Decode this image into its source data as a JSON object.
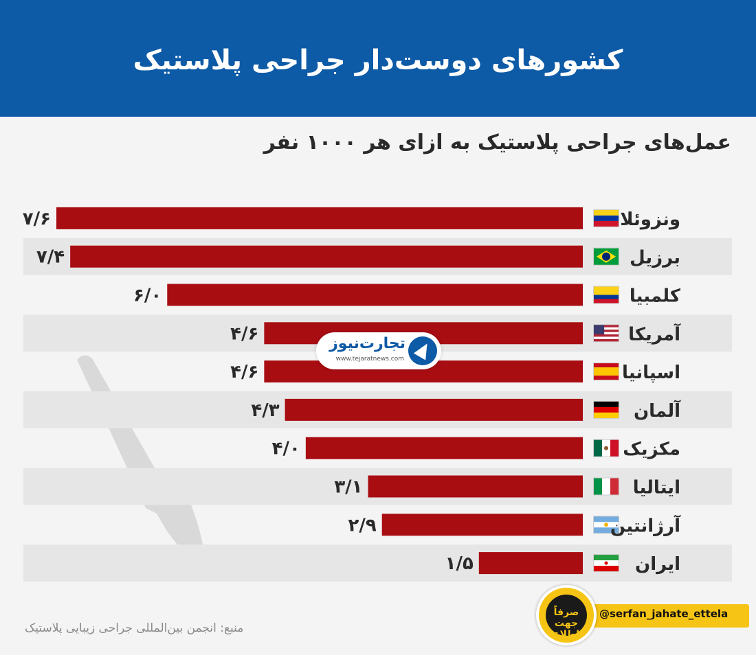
{
  "header": {
    "title": "کشورهای دوست‌دار جراحی پلاستیک",
    "background": "#0d5aa6"
  },
  "chart_data": {
    "type": "bar",
    "orientation": "horizontal",
    "title": "کشورهای دوست‌دار جراحی پلاستیک",
    "subtitle": "عمل‌های جراحی پلاستیک به ازای هر ۱۰۰۰ نفر",
    "categories": [
      "ونزوئلا",
      "برزیل",
      "کلمبیا",
      "آمریکا",
      "اسپانیا",
      "آلمان",
      "مکزیک",
      "ایتالیا",
      "آرژانتین",
      "ایران"
    ],
    "values": [
      7.6,
      7.4,
      6.0,
      4.6,
      4.6,
      4.3,
      4.0,
      3.1,
      2.9,
      1.5
    ],
    "value_labels": [
      "۷/۶",
      "۷/۴",
      "۶/۰",
      "۴/۶",
      "۴/۶",
      "۴/۳",
      "۴/۰",
      "۳/۱",
      "۲/۹",
      "۱/۵"
    ],
    "flags": [
      "venezuela",
      "brazil",
      "colombia",
      "usa",
      "spain",
      "germany",
      "mexico",
      "italy",
      "argentina",
      "iran"
    ],
    "xlim": [
      0,
      7.6
    ],
    "bar_color": "#a80d12",
    "stripe_color": "#e6e6e6",
    "grid": false,
    "legend": "none"
  },
  "source": "منبع: انجمن بین‌المللی جراحی زیبایی پلاستیک",
  "watermark": {
    "name": "تجارت‌نیوز",
    "url": "www.tejaratnews.com",
    "logo_icon": "tejarat-news-logo-icon"
  },
  "instagram": {
    "handle": "@serfan_jahate_ettela",
    "logo_text": "صرفاً جهت اطلاع",
    "color": "#f6c414"
  },
  "decoration": {
    "icon": "scalpel-icon"
  }
}
